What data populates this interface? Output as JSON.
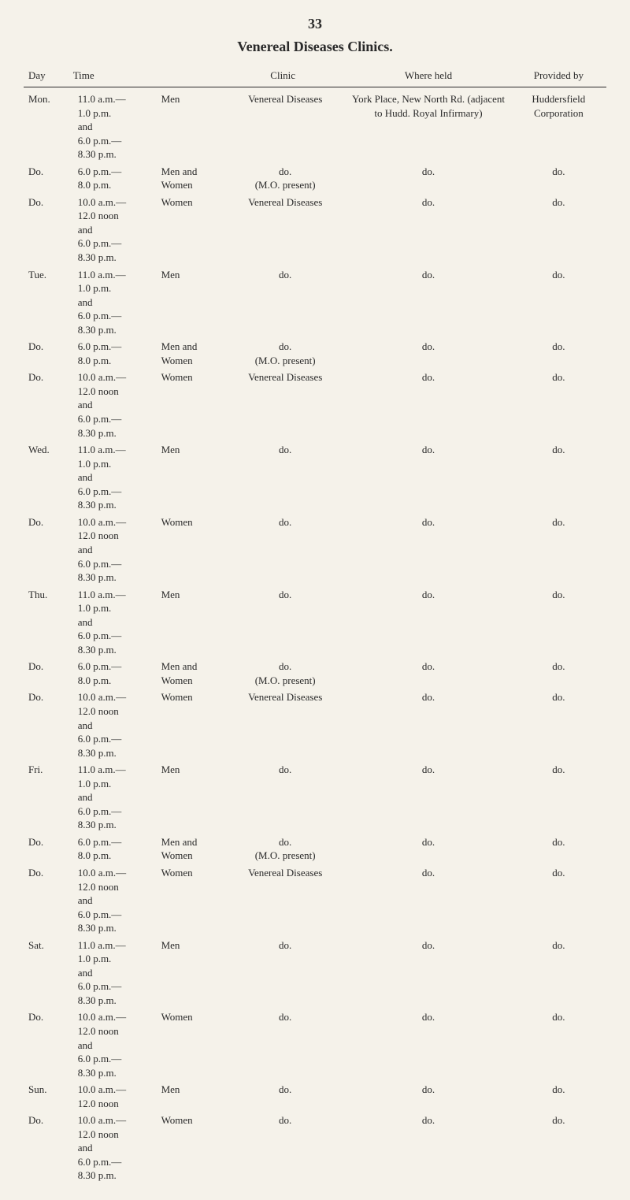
{
  "page_number": "33",
  "title": "Venereal Diseases Clinics.",
  "headers": {
    "day": "Day",
    "time": "Time",
    "clinic": "Clinic",
    "where": "Where held",
    "provided": "Provided by"
  },
  "rows": [
    {
      "day": "Mon.",
      "time": "11.0 a.m.—\n1.0 p.m.\nand\n6.0 p.m.—\n8.30 p.m.",
      "who": "Men",
      "clinic": "Venereal Diseases",
      "where": "York Place, New North Rd. (adjacent to Hudd. Royal Infirmary)",
      "provided": "Huddersfield Corporation"
    },
    {
      "day": "Do.",
      "time": "6.0 p.m.—\n8.0 p.m.",
      "who": "Men and\nWomen",
      "clinic": "do.\n(M.O. present)",
      "where": "do.",
      "provided": "do."
    },
    {
      "day": "Do.",
      "time": "10.0 a.m.—\n12.0 noon\nand\n6.0 p.m.—\n8.30 p.m.",
      "who": "Women",
      "clinic": "Venereal Diseases",
      "where": "do.",
      "provided": "do."
    },
    {
      "day": "Tue.",
      "time": "11.0 a.m.—\n1.0 p.m.\nand\n6.0 p.m.—\n8.30 p.m.",
      "who": "Men",
      "clinic": "do.",
      "where": "do.",
      "provided": "do."
    },
    {
      "day": "Do.",
      "time": "6.0 p.m.—\n8.0 p.m.",
      "who": "Men and\nWomen",
      "clinic": "do.\n(M.O. present)",
      "where": "do.",
      "provided": "do."
    },
    {
      "day": "Do.",
      "time": "10.0 a.m.—\n12.0 noon\nand\n6.0 p.m.—\n8.30 p.m.",
      "who": "Women",
      "clinic": "Venereal Diseases",
      "where": "do.",
      "provided": "do."
    },
    {
      "day": "Wed.",
      "time": "11.0 a.m.—\n1.0 p.m.\nand\n6.0 p.m.—\n8.30 p.m.",
      "who": "Men",
      "clinic": "do.",
      "where": "do.",
      "provided": "do."
    },
    {
      "day": "Do.",
      "time": "10.0 a.m.—\n12.0 noon\nand\n6.0 p.m.—\n8.30 p.m.",
      "who": "Women",
      "clinic": "do.",
      "where": "do.",
      "provided": "do."
    },
    {
      "day": "Thu.",
      "time": "11.0 a.m.—\n1.0 p.m.\nand\n6.0 p.m.—\n8.30 p.m.",
      "who": "Men",
      "clinic": "do.",
      "where": "do.",
      "provided": "do."
    },
    {
      "day": "Do.",
      "time": "6.0 p.m.—\n8.0 p.m.",
      "who": "Men and\nWomen",
      "clinic": "do.\n(M.O. present)",
      "where": "do.",
      "provided": "do."
    },
    {
      "day": "Do.",
      "time": "10.0 a.m.—\n12.0 noon\nand\n6.0 p.m.—\n8.30 p.m.",
      "who": "Women",
      "clinic": "Venereal Diseases",
      "where": "do.",
      "provided": "do."
    },
    {
      "day": "Fri.",
      "time": "11.0 a.m.—\n1.0 p.m.\nand\n6.0 p.m.—\n8.30 p.m.",
      "who": "Men",
      "clinic": "do.",
      "where": "do.",
      "provided": "do."
    },
    {
      "day": "Do.",
      "time": "6.0 p.m.—\n8.0 p.m.",
      "who": "Men and\nWomen",
      "clinic": "do.\n(M.O. present)",
      "where": "do.",
      "provided": "do."
    },
    {
      "day": "Do.",
      "time": "10.0 a.m.—\n12.0 noon\nand\n6.0 p.m.—\n8.30 p.m.",
      "who": "Women",
      "clinic": "Venereal Diseases",
      "where": "do.",
      "provided": "do."
    },
    {
      "day": "Sat.",
      "time": "11.0 a.m.—\n1.0 p.m.\nand\n6.0 p.m.—\n8.30 p.m.",
      "who": "Men",
      "clinic": "do.",
      "where": "do.",
      "provided": "do."
    },
    {
      "day": "Do.",
      "time": "10.0 a.m.—\n12.0 noon\nand\n6.0 p.m.—\n8.30 p.m.",
      "who": "Women",
      "clinic": "do.",
      "where": "do.",
      "provided": "do."
    },
    {
      "day": "Sun.",
      "time": "10.0 a.m.—\n12.0 noon",
      "who": "Men",
      "clinic": "do.",
      "where": "do.",
      "provided": "do."
    },
    {
      "day": "Do.",
      "time": "10.0 a.m.—\n12.0 noon\nand\n6.0 p.m.—\n8.30 p.m.",
      "who": "Women",
      "clinic": "do.",
      "where": "do.",
      "provided": "do."
    }
  ]
}
